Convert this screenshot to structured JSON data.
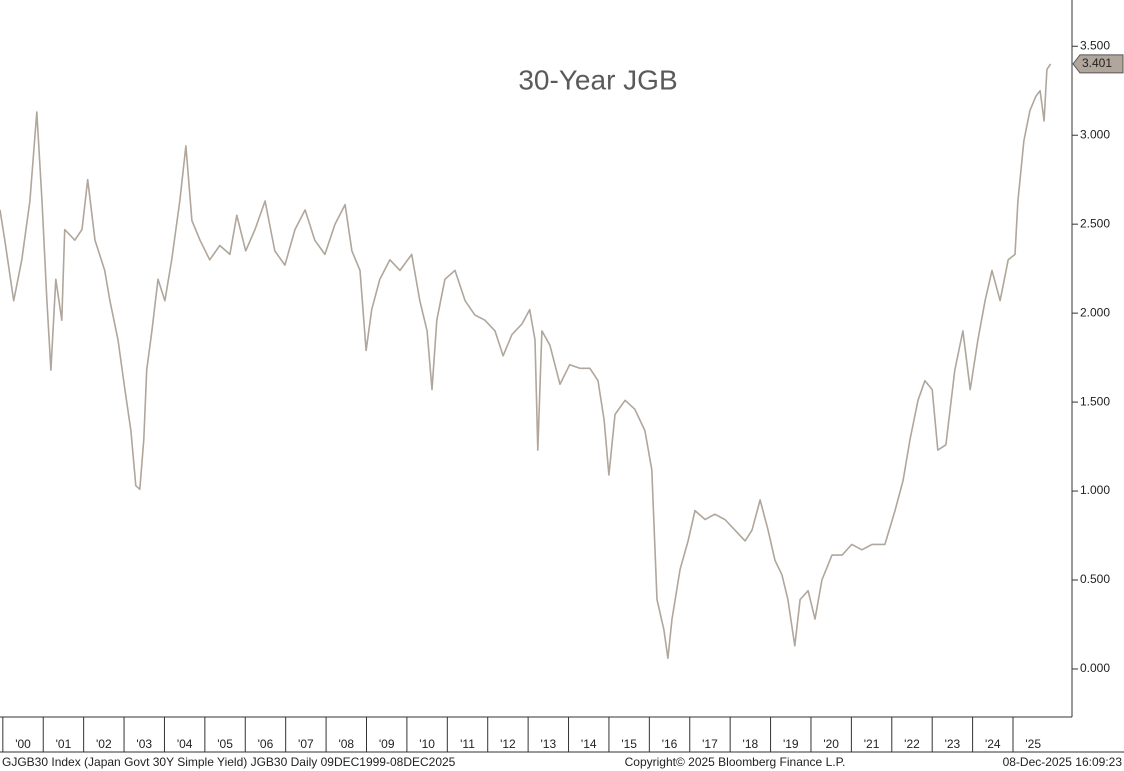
{
  "chart_data": {
    "type": "line",
    "title": "30-Year JGB",
    "x": [
      1999.93,
      2000.05,
      2000.27,
      2000.47,
      2000.67,
      2000.84,
      2000.97,
      2001.09,
      2001.19,
      2001.31,
      2001.46,
      2001.53,
      2001.78,
      2001.96,
      2002.1,
      2002.28,
      2002.52,
      2002.65,
      2002.85,
      2003.02,
      2003.17,
      2003.29,
      2003.39,
      2003.49,
      2003.56,
      2003.69,
      2003.84,
      2004.01,
      2004.18,
      2004.38,
      2004.53,
      2004.68,
      2004.88,
      2005.12,
      2005.37,
      2005.62,
      2005.79,
      2006.01,
      2006.24,
      2006.49,
      2006.73,
      2006.98,
      2007.23,
      2007.48,
      2007.72,
      2007.97,
      2008.22,
      2008.47,
      2008.64,
      2008.84,
      2008.99,
      2009.13,
      2009.33,
      2009.58,
      2009.83,
      2010.12,
      2010.32,
      2010.5,
      2010.62,
      2010.74,
      2010.94,
      2011.19,
      2011.44,
      2011.68,
      2011.93,
      2012.18,
      2012.38,
      2012.6,
      2012.85,
      2013.04,
      2013.17,
      2013.24,
      2013.34,
      2013.54,
      2013.79,
      2014.03,
      2014.28,
      2014.53,
      2014.73,
      2014.88,
      2015.0,
      2015.15,
      2015.4,
      2015.64,
      2015.89,
      2016.06,
      2016.19,
      2016.36,
      2016.46,
      2016.56,
      2016.76,
      2016.96,
      2017.13,
      2017.38,
      2017.62,
      2017.87,
      2018.12,
      2018.37,
      2018.54,
      2018.74,
      2018.94,
      2019.11,
      2019.28,
      2019.43,
      2019.6,
      2019.73,
      2019.93,
      2020.1,
      2020.27,
      2020.52,
      2020.77,
      2021.01,
      2021.26,
      2021.51,
      2021.83,
      2022.08,
      2022.28,
      2022.45,
      2022.65,
      2022.82,
      2023.0,
      2023.14,
      2023.34,
      2023.56,
      2023.76,
      2023.94,
      2024.13,
      2024.31,
      2024.48,
      2024.68,
      2024.88,
      2025.05,
      2025.12,
      2025.27,
      2025.42,
      2025.57,
      2025.67,
      2025.77,
      2025.84,
      2025.93
    ],
    "values": [
      2.58,
      2.41,
      2.07,
      2.3,
      2.63,
      3.13,
      2.63,
      2.07,
      1.68,
      2.19,
      1.96,
      2.47,
      2.41,
      2.47,
      2.75,
      2.41,
      2.24,
      2.07,
      1.85,
      1.57,
      1.34,
      1.03,
      1.01,
      1.29,
      1.68,
      1.9,
      2.19,
      2.07,
      2.3,
      2.63,
      2.94,
      2.52,
      2.41,
      2.3,
      2.38,
      2.33,
      2.55,
      2.35,
      2.47,
      2.63,
      2.35,
      2.27,
      2.47,
      2.58,
      2.41,
      2.33,
      2.5,
      2.61,
      2.35,
      2.24,
      1.79,
      2.02,
      2.19,
      2.3,
      2.24,
      2.33,
      2.07,
      1.9,
      1.57,
      1.96,
      2.19,
      2.24,
      2.07,
      1.99,
      1.96,
      1.9,
      1.76,
      1.88,
      1.94,
      2.02,
      1.85,
      1.23,
      1.9,
      1.82,
      1.6,
      1.71,
      1.69,
      1.69,
      1.62,
      1.4,
      1.09,
      1.43,
      1.51,
      1.46,
      1.34,
      1.12,
      0.39,
      0.22,
      0.06,
      0.28,
      0.56,
      0.72,
      0.89,
      0.84,
      0.87,
      0.84,
      0.78,
      0.72,
      0.78,
      0.95,
      0.78,
      0.61,
      0.53,
      0.39,
      0.13,
      0.39,
      0.44,
      0.28,
      0.5,
      0.64,
      0.64,
      0.7,
      0.67,
      0.7,
      0.7,
      0.89,
      1.06,
      1.29,
      1.51,
      1.62,
      1.57,
      1.23,
      1.26,
      1.68,
      1.9,
      1.57,
      1.85,
      2.07,
      2.24,
      2.07,
      2.3,
      2.33,
      2.63,
      2.97,
      3.14,
      3.22,
      3.25,
      3.08,
      3.37,
      3.401
    ],
    "color": "#b0a69b",
    "last_value": 3.401,
    "xlim": [
      1999.93,
      2026.46
    ],
    "xticks": [
      {
        "value": 2000,
        "label": "'00"
      },
      {
        "value": 2001,
        "label": "'01"
      },
      {
        "value": 2002,
        "label": "'02"
      },
      {
        "value": 2003,
        "label": "'03"
      },
      {
        "value": 2004,
        "label": "'04"
      },
      {
        "value": 2005,
        "label": "'05"
      },
      {
        "value": 2006,
        "label": "'06"
      },
      {
        "value": 2007,
        "label": "'07"
      },
      {
        "value": 2008,
        "label": "'08"
      },
      {
        "value": 2009,
        "label": "'09"
      },
      {
        "value": 2010,
        "label": "'10"
      },
      {
        "value": 2011,
        "label": "'11"
      },
      {
        "value": 2012,
        "label": "'12"
      },
      {
        "value": 2013,
        "label": "'13"
      },
      {
        "value": 2014,
        "label": "'14"
      },
      {
        "value": 2015,
        "label": "'15"
      },
      {
        "value": 2016,
        "label": "'16"
      },
      {
        "value": 2017,
        "label": "'17"
      },
      {
        "value": 2018,
        "label": "'18"
      },
      {
        "value": 2019,
        "label": "'19"
      },
      {
        "value": 2020,
        "label": "'20"
      },
      {
        "value": 2021,
        "label": "'21"
      },
      {
        "value": 2022,
        "label": "'22"
      },
      {
        "value": 2023,
        "label": "'23"
      },
      {
        "value": 2024,
        "label": "'24"
      },
      {
        "value": 2025,
        "label": "'25"
      }
    ],
    "ylim": [
      -0.27,
      3.76
    ],
    "yticks": [
      {
        "value": 0,
        "label": "0.000"
      },
      {
        "value": 0.5,
        "label": "0.500"
      },
      {
        "value": 1,
        "label": "1.000"
      },
      {
        "value": 1.5,
        "label": "1.500"
      },
      {
        "value": 2,
        "label": "2.000"
      },
      {
        "value": 2.5,
        "label": "2.500"
      },
      {
        "value": 3,
        "label": "3.000"
      },
      {
        "value": 3.5,
        "label": "3.500"
      }
    ],
    "footer_left": "GJGB30 Index (Japan Govt 30Y Simple Yield) JGB30 Daily 09DEC1999-08DEC2025",
    "footer_center": "Copyright© 2025 Bloomberg Finance L.P.",
    "footer_right": "08-Dec-2025 16:09:23"
  }
}
